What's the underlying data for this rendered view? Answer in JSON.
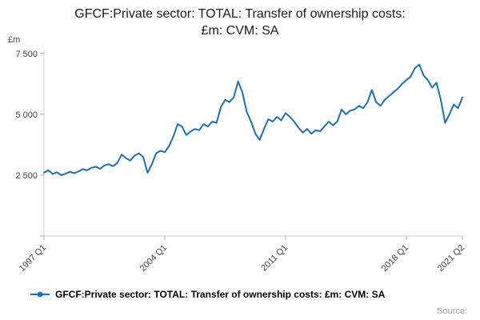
{
  "title": {
    "line1": "GFCF:Private sector: TOTAL: Transfer of ownership costs:",
    "line2": "£m: CVM: SA"
  },
  "y_unit": "£m",
  "source_label": "Source:",
  "colors": {
    "line": "#1d70b8",
    "axis": "#cfd2d4",
    "tick": "#a9abad",
    "tick_text": "#414042"
  },
  "chart_data": {
    "type": "line",
    "title": "GFCF:Private sector: TOTAL: Transfer of ownership costs: £m: CVM: SA",
    "xlabel": "",
    "ylabel": "£m",
    "ylim": [
      0,
      7660
    ],
    "grid": false,
    "legend_position": "bottom",
    "frequency": "quarterly",
    "x_range": [
      "1997 Q1",
      "2021 Q2"
    ],
    "y_ticks": [
      {
        "label": "7 500",
        "value": 7500
      },
      {
        "label": "5 000",
        "value": 5000
      },
      {
        "label": "2 500",
        "value": 2500
      },
      {
        "label": "",
        "value": 0
      }
    ],
    "x_ticks": [
      {
        "label": "1997 Q1",
        "index": 0
      },
      {
        "label": "2004 Q1",
        "index": 28
      },
      {
        "label": "2011 Q1",
        "index": 56
      },
      {
        "label": "2018 Q1",
        "index": 84
      },
      {
        "label": "2021 Q2",
        "index": 97
      }
    ],
    "series": [
      {
        "name": "GFCF:Private sector: TOTAL: Transfer of ownership costs: £m: CVM: SA",
        "color": "#1d70b8",
        "values": [
          2600,
          2700,
          2550,
          2620,
          2500,
          2560,
          2640,
          2580,
          2650,
          2750,
          2700,
          2800,
          2850,
          2760,
          2900,
          2950,
          2870,
          3000,
          3350,
          3200,
          3100,
          3300,
          3400,
          3250,
          2600,
          2950,
          3400,
          3500,
          3450,
          3700,
          4100,
          4600,
          4500,
          4150,
          4300,
          4400,
          4350,
          4600,
          4500,
          4700,
          4650,
          5300,
          5600,
          5500,
          5700,
          6350,
          5900,
          5100,
          4700,
          4200,
          3950,
          4400,
          4800,
          4700,
          4900,
          4750,
          5050,
          4900,
          4700,
          4450,
          4250,
          4400,
          4200,
          4350,
          4300,
          4500,
          4700,
          4550,
          4700,
          5200,
          5000,
          5150,
          5200,
          5350,
          5250,
          5500,
          6000,
          5500,
          5350,
          5600,
          5750,
          5900,
          6050,
          6250,
          6400,
          6550,
          6900,
          7050,
          6600,
          6400,
          6100,
          6300,
          5600,
          4650,
          5000,
          5400,
          5250,
          5700
        ]
      }
    ]
  }
}
